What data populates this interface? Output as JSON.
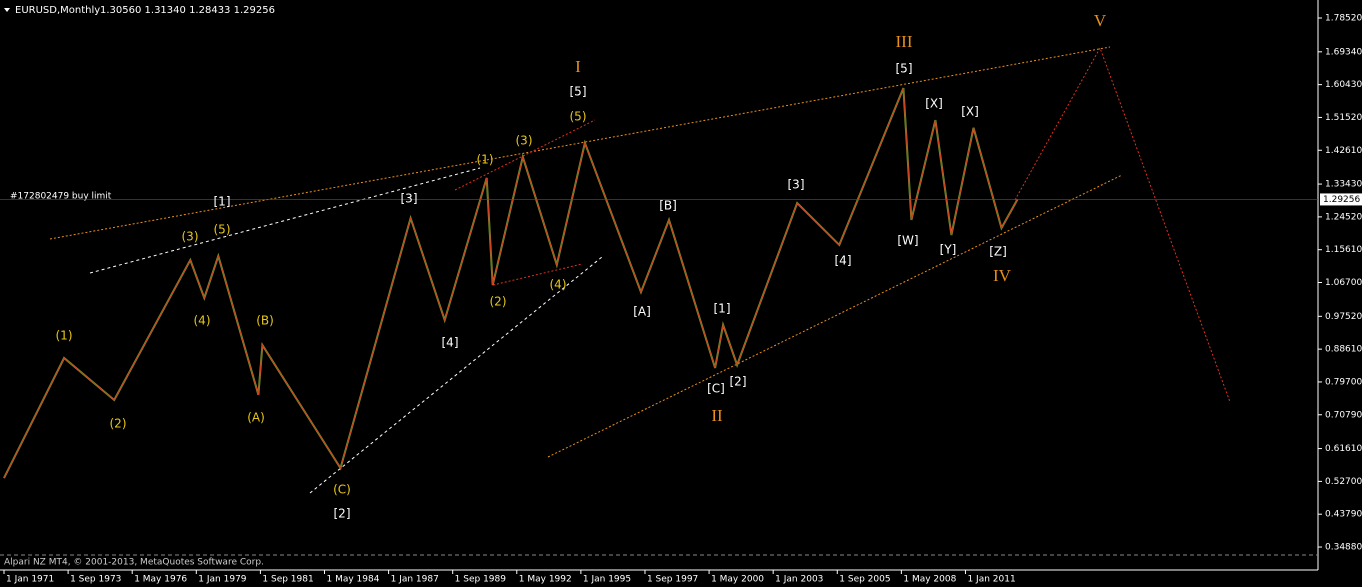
{
  "chart_data": {
    "type": "line",
    "title": "EURUSD,Monthly",
    "ohlc_header": "1.30560 1.31340 1.28433 1.29256",
    "order_note": "#172802479 buy limit",
    "copyright": "Alpari NZ MT4, © 2001-2013, MetaQuotes Software Corp.",
    "x": [
      "1971-01",
      "1973-07",
      "1975-08",
      "1978-10",
      "1979-05",
      "1979-12",
      "1981-08",
      "1981-10",
      "1985-01",
      "1987-12",
      "1989-05",
      "1991-02",
      "1991-05",
      "1992-08",
      "1994-01",
      "1995-03",
      "1997-07",
      "1998-09",
      "2000-08",
      "2000-12",
      "2001-07",
      "2004-01",
      "2005-10",
      "2008-06",
      "2008-10",
      "2009-10",
      "2010-06",
      "2011-05",
      "2012-07",
      "2013-03"
    ],
    "series": [
      {
        "name": "EURUSD",
        "color": "#6f9a2c",
        "values": [
          0.536,
          0.862,
          0.748,
          1.128,
          1.025,
          1.139,
          0.762,
          0.897,
          0.563,
          1.242,
          0.965,
          1.351,
          1.06,
          1.408,
          1.115,
          1.446,
          1.041,
          1.237,
          0.835,
          0.952,
          0.843,
          1.283,
          1.169,
          1.595,
          1.237,
          1.508,
          1.196,
          1.487,
          1.215,
          1.29256
        ]
      }
    ],
    "last_price": 1.29256,
    "xlim": [
      "1970-11",
      "2025-09"
    ],
    "xticks": [
      {
        "value": "1971-01",
        "label": "1 Jan 1971"
      },
      {
        "value": "1973-09",
        "label": "1 Sep 1973"
      },
      {
        "value": "1976-05",
        "label": "1 May 1976"
      },
      {
        "value": "1979-01",
        "label": "1 Jan 1979"
      },
      {
        "value": "1981-09",
        "label": "1 Sep 1981"
      },
      {
        "value": "1984-05",
        "label": "1 May 1984"
      },
      {
        "value": "1987-01",
        "label": "1 Jan 1987"
      },
      {
        "value": "1989-09",
        "label": "1 Sep 1989"
      },
      {
        "value": "1992-05",
        "label": "1 May 1992"
      },
      {
        "value": "1995-01",
        "label": "1 Jan 1995"
      },
      {
        "value": "1997-09",
        "label": "1 Sep 1997"
      },
      {
        "value": "2000-05",
        "label": "1 May 2000"
      },
      {
        "value": "2003-01",
        "label": "1 Jan 2003"
      },
      {
        "value": "2005-09",
        "label": "1 Sep 2005"
      },
      {
        "value": "2008-05",
        "label": "1 May 2008"
      },
      {
        "value": "2011-01",
        "label": "1 Jan 2011"
      }
    ],
    "ylim": [
      0.2864,
      1.8341
    ],
    "yticks": [
      {
        "value": 1.7852,
        "label": "1.78520"
      },
      {
        "value": 1.6934,
        "label": "1.69340"
      },
      {
        "value": 1.6043,
        "label": "1.60430"
      },
      {
        "value": 1.5152,
        "label": "1.51520"
      },
      {
        "value": 1.4261,
        "label": "1.42610"
      },
      {
        "value": 1.3343,
        "label": "1.33430"
      },
      {
        "value": 1.2452,
        "label": "1.24520"
      },
      {
        "value": 1.1561,
        "label": "1.15610"
      },
      {
        "value": 1.067,
        "label": "1.06700"
      },
      {
        "value": 0.9752,
        "label": "0.97520"
      },
      {
        "value": 0.8861,
        "label": "0.88610"
      },
      {
        "value": 0.797,
        "label": "0.79700"
      },
      {
        "value": 0.7079,
        "label": "0.70790"
      },
      {
        "value": 0.6161,
        "label": "0.61610"
      },
      {
        "value": 0.527,
        "label": "0.52700"
      },
      {
        "value": 0.4379,
        "label": "0.43790"
      },
      {
        "value": 0.3488,
        "label": "0.34880"
      }
    ],
    "wave_labels": {
      "minor": {
        "color": "#e6c619",
        "labels": [
          "(1)",
          "(2)",
          "(3)",
          "(4)",
          "(5)",
          "(A)",
          "(B)",
          "(C)",
          "(1)",
          "(2)",
          "(3)",
          "(4)",
          "(5)"
        ]
      },
      "intermediate": {
        "color": "#ffffff",
        "labels": [
          "[1]",
          "[2]",
          "[3]",
          "[4]",
          "[5]",
          "[A]",
          "[B]",
          "[C]",
          "[1]",
          "[2]",
          "[3]",
          "[4]",
          "[5]",
          "[W]",
          "[X]",
          "[Y]",
          "[X]",
          "[Z]"
        ]
      },
      "primary": {
        "color": "#e8901a",
        "labels": [
          "I",
          "II",
          "III",
          "IV",
          "V"
        ]
      }
    }
  }
}
